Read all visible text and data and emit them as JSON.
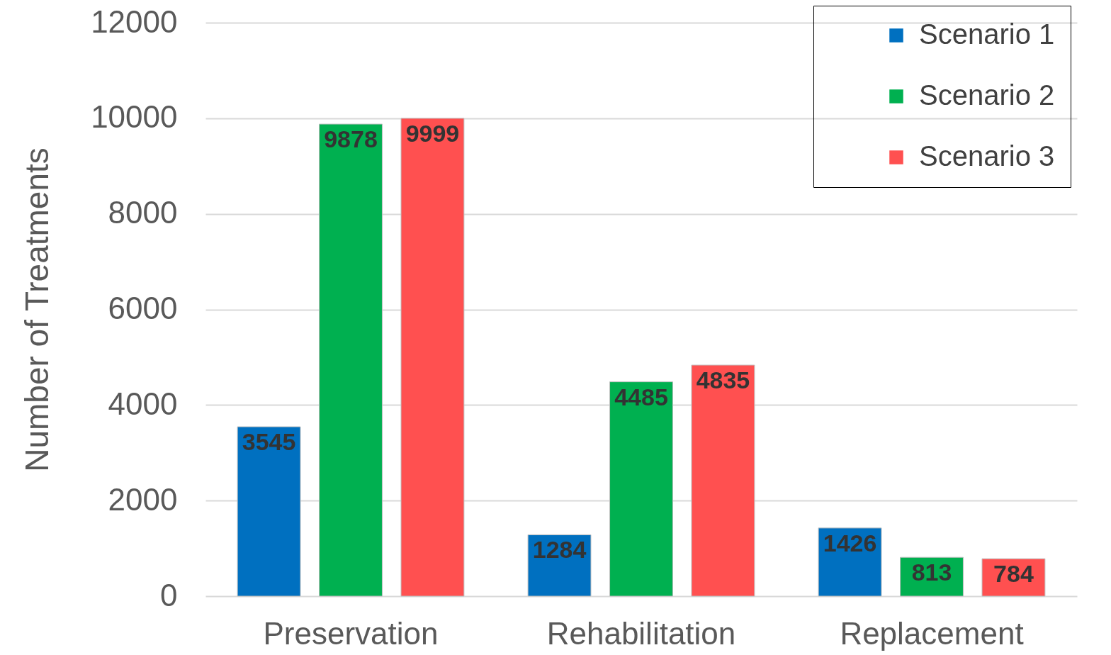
{
  "chart_data": {
    "type": "bar",
    "ylabel": "Number of Treatments",
    "categories": [
      "Preservation",
      "Rehabilitation",
      "Replacement"
    ],
    "series": [
      {
        "name": "Scenario 1",
        "color": "#0070c0",
        "values": [
          3545,
          1284,
          1426
        ]
      },
      {
        "name": "Scenario 2",
        "color": "#00b050",
        "values": [
          9878,
          4485,
          813
        ]
      },
      {
        "name": "Scenario 3",
        "color": "#ff5050",
        "values": [
          9999,
          4835,
          784
        ]
      }
    ],
    "ylim": [
      0,
      12000
    ],
    "yticks": [
      0,
      2000,
      4000,
      6000,
      8000,
      10000,
      12000
    ],
    "grid": "y",
    "legend": "top right",
    "data_labels": true
  }
}
